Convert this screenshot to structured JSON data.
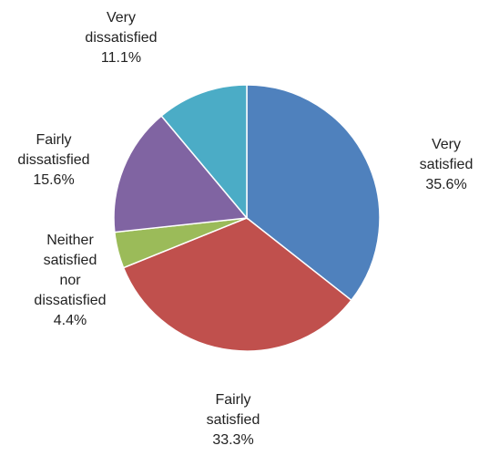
{
  "chart_data": {
    "type": "pie",
    "title": "",
    "start_angle_deg": 0,
    "direction": "clockwise",
    "slices": [
      {
        "label": "Very satisfied",
        "value": 35.6,
        "display": "35.6%",
        "color": "#4F81BD"
      },
      {
        "label": "Fairly satisfied",
        "value": 33.3,
        "display": "33.3%",
        "color": "#C0504D"
      },
      {
        "label": "Neither satisfied nor dissatisfied",
        "value": 4.4,
        "display": "4.4%",
        "color": "#9BBB59"
      },
      {
        "label": "Fairly dissatisfied",
        "value": 15.6,
        "display": "15.6%",
        "color": "#8064A2"
      },
      {
        "label": "Very dissatisfied",
        "value": 11.1,
        "display": "11.1%",
        "color": "#4BACC6"
      }
    ],
    "legend": "none",
    "labels_outside": true
  }
}
